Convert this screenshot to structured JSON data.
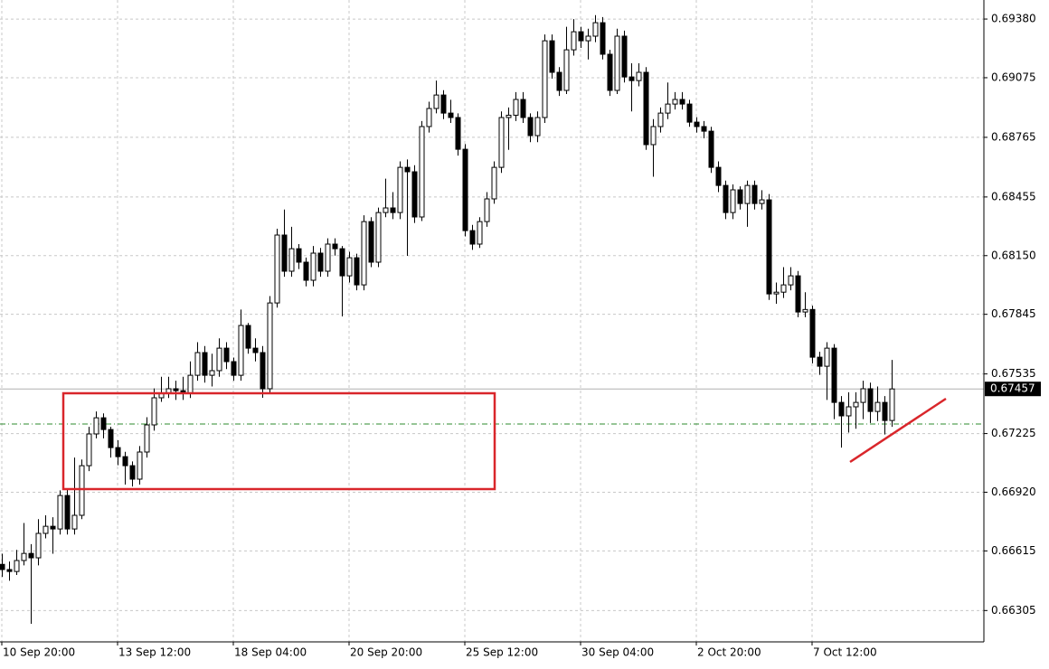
{
  "chart_data": {
    "type": "candlestick",
    "categories": [
      "10 Sep 20:00",
      null,
      null,
      null,
      null,
      null,
      null,
      null,
      null,
      null,
      null,
      null,
      null,
      null,
      null,
      null,
      "13 Sep 12:00",
      null,
      null,
      null,
      null,
      null,
      null,
      null,
      null,
      null,
      null,
      null,
      null,
      null,
      null,
      null,
      "18 Sep 04:00",
      null,
      null,
      null,
      null,
      null,
      null,
      null,
      null,
      null,
      null,
      null,
      null,
      null,
      null,
      null,
      "20 Sep 20:00",
      null,
      null,
      null,
      null,
      null,
      null,
      null,
      null,
      null,
      null,
      null,
      null,
      null,
      null,
      null,
      "25 Sep 12:00",
      null,
      null,
      null,
      null,
      null,
      null,
      null,
      null,
      null,
      null,
      null,
      null,
      null,
      null,
      null,
      "30 Sep 04:00",
      null,
      null,
      null,
      null,
      null,
      null,
      null,
      null,
      null,
      null,
      null,
      null,
      null,
      null,
      null,
      "2 Oct 20:00",
      null,
      null,
      null,
      null,
      null,
      null,
      null,
      null,
      null,
      null,
      null,
      null,
      null,
      null,
      null,
      "7 Oct 12:00",
      null,
      null,
      null,
      null,
      null,
      null,
      null,
      null,
      null,
      null,
      null
    ],
    "open": [
      0.66545,
      0.66518,
      0.66508,
      0.66565,
      0.66602,
      0.66579,
      0.66706,
      0.66743,
      0.66729,
      0.66903,
      0.66729,
      0.668,
      0.67058,
      0.67223,
      0.67307,
      0.67246,
      0.67152,
      0.67105,
      0.67058,
      0.66988,
      0.67129,
      0.6727,
      0.67411,
      0.67434,
      0.67458,
      0.67448,
      0.67434,
      0.67528,
      0.67646,
      0.67528,
      0.67552,
      0.67669,
      0.67599,
      0.67528,
      0.67787,
      0.67669,
      0.67646,
      0.67458,
      0.67904,
      0.68257,
      0.68069,
      0.68186,
      0.68116,
      0.68022,
      0.68163,
      0.68069,
      0.6821,
      0.68186,
      0.68045,
      0.68139,
      0.67998,
      0.68327,
      0.68116,
      0.68374,
      0.68398,
      0.68374,
      0.68609,
      0.68586,
      0.68351,
      0.68821,
      0.68915,
      0.68985,
      0.68891,
      0.68868,
      0.68703,
      0.6828,
      0.6821,
      0.68327,
      0.68445,
      0.68609,
      0.68868,
      0.6888,
      0.68962,
      0.68868,
      0.68774,
      0.68868,
      0.69267,
      0.69103,
      0.69009,
      0.6922,
      0.69314,
      0.69267,
      0.69291,
      0.69361,
      0.69197,
      0.69009,
      0.69291,
      0.69079,
      0.6906,
      0.69103,
      0.68727,
      0.68821,
      0.68891,
      0.68938,
      0.68962,
      0.68938,
      0.68844,
      0.68821,
      0.68797,
      0.68609,
      0.68515,
      0.68374,
      0.68492,
      0.68421,
      0.68515,
      0.68421,
      0.6844,
      0.67951,
      0.6796,
      0.67998,
      0.68045,
      0.67857,
      0.6787,
      0.67622,
      0.67575,
      0.67669,
      0.67387,
      0.67317,
      0.67364,
      0.67387,
      0.67458,
      0.6734,
      0.67387,
      0.67293
    ],
    "high": [
      0.666,
      0.6656,
      0.6662,
      0.6676,
      0.6665,
      0.6678,
      0.668,
      0.6679,
      0.6693,
      0.6694,
      0.671,
      0.6709,
      0.6726,
      0.6734,
      0.6733,
      0.6726,
      0.6719,
      0.6713,
      0.6708,
      0.6716,
      0.6731,
      0.6746,
      0.6752,
      0.6752,
      0.675,
      0.6752,
      0.676,
      0.677,
      0.6768,
      0.6764,
      0.6772,
      0.677,
      0.6762,
      0.6787,
      0.678,
      0.6772,
      0.6768,
      0.6794,
      0.6829,
      0.6839,
      0.683,
      0.6821,
      0.6814,
      0.682,
      0.6819,
      0.6824,
      0.6824,
      0.682,
      0.6817,
      0.6816,
      0.6836,
      0.6835,
      0.684,
      0.6855,
      0.6848,
      0.6864,
      0.6865,
      0.6862,
      0.6885,
      0.6895,
      0.6906,
      0.6901,
      0.6896,
      0.6889,
      0.6873,
      0.6831,
      0.6835,
      0.6848,
      0.6864,
      0.689,
      0.6892,
      0.69,
      0.69,
      0.6889,
      0.689,
      0.693,
      0.693,
      0.6913,
      0.6934,
      0.6938,
      0.6934,
      0.6933,
      0.694,
      0.6939,
      0.6922,
      0.6933,
      0.6932,
      0.6915,
      0.6915,
      0.6913,
      0.6886,
      0.6892,
      0.6905,
      0.69,
      0.69,
      0.6896,
      0.6887,
      0.6885,
      0.6882,
      0.6864,
      0.6854,
      0.6852,
      0.6851,
      0.6854,
      0.6854,
      0.6849,
      0.6847,
      0.6801,
      0.6809,
      0.6809,
      0.6807,
      0.6796,
      0.6789,
      0.6765,
      0.677,
      0.6769,
      0.6742,
      0.6744,
      0.6744,
      0.675,
      0.6749,
      0.6747,
      0.6742,
      0.67608
    ],
    "low": [
      0.6648,
      0.6646,
      0.6649,
      0.6654,
      0.66236,
      0.6654,
      0.6668,
      0.666,
      0.667,
      0.667,
      0.667,
      0.6678,
      0.6703,
      0.672,
      0.672,
      0.671,
      0.6706,
      0.6696,
      0.6695,
      0.6696,
      0.671,
      0.6724,
      0.6739,
      0.6741,
      0.674,
      0.674,
      0.6741,
      0.675,
      0.6749,
      0.6747,
      0.6752,
      0.6756,
      0.675,
      0.675,
      0.6764,
      0.676,
      0.67411,
      0.6743,
      0.6788,
      0.6804,
      0.6804,
      0.6808,
      0.6799,
      0.6799,
      0.6804,
      0.6804,
      0.6815,
      0.67834,
      0.6801,
      0.6797,
      0.6797,
      0.6809,
      0.6809,
      0.6835,
      0.6834,
      0.6834,
      0.68149,
      0.6832,
      0.6833,
      0.6879,
      0.6889,
      0.6886,
      0.6884,
      0.6867,
      0.6825,
      0.6818,
      0.6819,
      0.683,
      0.6842,
      0.6858,
      0.687,
      0.6885,
      0.6884,
      0.6874,
      0.6874,
      0.6884,
      0.6907,
      0.6898,
      0.6899,
      0.6919,
      0.6923,
      0.6917,
      0.6926,
      0.6917,
      0.6898,
      0.6899,
      0.6905,
      0.689,
      0.6903,
      0.687,
      0.6856,
      0.6879,
      0.6886,
      0.6891,
      0.6891,
      0.6882,
      0.6879,
      0.6876,
      0.6858,
      0.6848,
      0.6834,
      0.6834,
      0.6839,
      0.683,
      0.6839,
      0.6839,
      0.6792,
      0.679,
      0.6793,
      0.6797,
      0.6783,
      0.6783,
      0.6759,
      0.6753,
      0.674,
      0.673,
      0.67152,
      0.6723,
      0.6725,
      0.673,
      0.6728,
      0.6729,
      0.6722,
      0.6726
    ],
    "close": [
      0.66518,
      0.66508,
      0.66565,
      0.66602,
      0.66579,
      0.66706,
      0.66743,
      0.66729,
      0.66903,
      0.66729,
      0.668,
      0.67058,
      0.67223,
      0.67307,
      0.67246,
      0.67152,
      0.67105,
      0.67058,
      0.66988,
      0.67129,
      0.6727,
      0.67411,
      0.67434,
      0.67458,
      0.67448,
      0.67434,
      0.67528,
      0.67646,
      0.67528,
      0.67552,
      0.67669,
      0.67599,
      0.67528,
      0.67787,
      0.67669,
      0.67646,
      0.67458,
      0.67904,
      0.68257,
      0.68069,
      0.68186,
      0.68116,
      0.68022,
      0.68163,
      0.68069,
      0.6821,
      0.68186,
      0.68045,
      0.68139,
      0.67998,
      0.68327,
      0.68116,
      0.68374,
      0.68398,
      0.68374,
      0.68609,
      0.68586,
      0.68351,
      0.68821,
      0.68915,
      0.68985,
      0.68891,
      0.68868,
      0.68703,
      0.6828,
      0.6821,
      0.68327,
      0.68445,
      0.68609,
      0.68868,
      0.6888,
      0.68962,
      0.68868,
      0.68774,
      0.68868,
      0.69267,
      0.69103,
      0.69009,
      0.6922,
      0.69314,
      0.69267,
      0.69291,
      0.69361,
      0.69197,
      0.69009,
      0.69291,
      0.69079,
      0.6906,
      0.69103,
      0.68727,
      0.68821,
      0.68891,
      0.68938,
      0.68962,
      0.68938,
      0.68844,
      0.68821,
      0.68797,
      0.68609,
      0.68515,
      0.68374,
      0.68492,
      0.68421,
      0.68515,
      0.68421,
      0.6844,
      0.67951,
      0.6796,
      0.67998,
      0.68045,
      0.67857,
      0.6787,
      0.67622,
      0.67575,
      0.67669,
      0.67387,
      0.67317,
      0.67364,
      0.67387,
      0.67458,
      0.6734,
      0.67387,
      0.67293,
      0.67457
    ],
    "up_color": "#ffffff",
    "down_color": "#000000",
    "ylim": [
      0.66142,
      0.69479
    ],
    "yticks": [
      {
        "value": 0.6938,
        "label": "0.69380"
      },
      {
        "value": 0.69075,
        "label": "0.69075"
      },
      {
        "value": 0.68765,
        "label": "0.68765"
      },
      {
        "value": 0.68455,
        "label": "0.68455"
      },
      {
        "value": 0.6815,
        "label": "0.68150"
      },
      {
        "value": 0.67845,
        "label": "0.67845"
      },
      {
        "value": 0.67535,
        "label": "0.67535"
      },
      {
        "value": 0.67225,
        "label": "0.67225"
      },
      {
        "value": 0.6692,
        "label": "0.66920"
      },
      {
        "value": 0.66615,
        "label": "0.66615"
      },
      {
        "value": 0.66305,
        "label": "0.66305"
      }
    ],
    "current_price": {
      "value": 0.67457,
      "label": "0.67457"
    },
    "grid": true
  }
}
